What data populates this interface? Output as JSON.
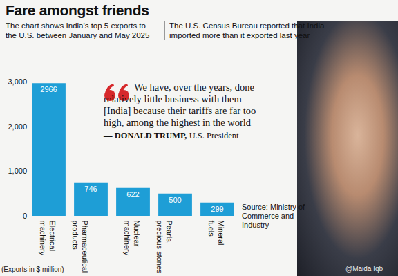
{
  "chart_data": {
    "type": "bar",
    "title": "Fare amongst friends",
    "subtitle": "The chart shows India's top 5 exports to the U.S. between January and May 2025",
    "note": "The U.S. Census Bureau reported that India imported more than it exported last year",
    "quote": "We have, over the years, done relatively little business with them [India] because their tariffs are far too high, among the highest in the world",
    "quote_attribution": "— DONALD TRUMP,",
    "quote_role": "U.S. President",
    "source": "Source: Ministry of Commerce and Industry",
    "unit_note": "(Exports in $ million)",
    "credit": "@Maida Iqb",
    "categories": [
      "Electrical machinery",
      "Pharmaceutical products",
      "Nuclear machinery",
      "Pearls, precious stones",
      "Mineral fuels"
    ],
    "values": [
      2966,
      746,
      622,
      500,
      299
    ],
    "color": "#1e9ed6",
    "ylim": [
      0,
      3000
    ],
    "yticks": [
      0,
      {
        "value": 1000,
        "label": "1,000"
      },
      {
        "value": 2000,
        "label": "2,000"
      },
      {
        "value": 3000,
        "label": "3,000"
      }
    ],
    "grid": false,
    "data_labels": true
  }
}
